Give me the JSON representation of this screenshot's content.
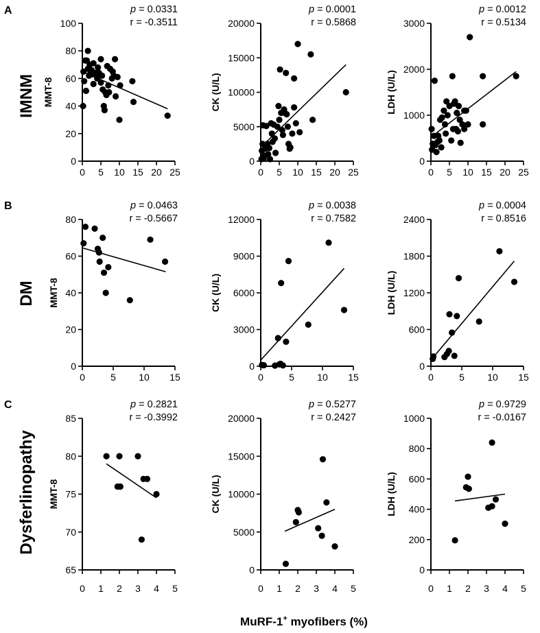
{
  "panel_letters": [
    "A",
    "B",
    "C"
  ],
  "row_labels": [
    "IMNM",
    "DM",
    "Dysferlinopathy"
  ],
  "xlabel": {
    "text": "MuRF-1",
    "sup": "+",
    "suffix": " myofibers (%)"
  },
  "chart_data": [
    {
      "id": "A1",
      "type": "scatter",
      "row": 0,
      "col": 0,
      "ylabel": "MMT-8",
      "xlim": [
        0,
        25
      ],
      "xticks": [
        0,
        5,
        10,
        15,
        20,
        25
      ],
      "ylim": [
        0,
        100
      ],
      "yticks": [
        0,
        20,
        40,
        60,
        80,
        100
      ],
      "p_label": "p",
      "p_value": "= 0.0331",
      "r_text": "r = -0.3511",
      "fit": [
        [
          0,
          65
        ],
        [
          23,
          38
        ]
      ],
      "points": [
        [
          0.2,
          40
        ],
        [
          0.3,
          65
        ],
        [
          0.5,
          58
        ],
        [
          0.8,
          73
        ],
        [
          1,
          51
        ],
        [
          1.2,
          73
        ],
        [
          1.5,
          80
        ],
        [
          1.5,
          67
        ],
        [
          1.8,
          62
        ],
        [
          2,
          70
        ],
        [
          2.2,
          64
        ],
        [
          2.5,
          66
        ],
        [
          2.8,
          63
        ],
        [
          3,
          71
        ],
        [
          3,
          56
        ],
        [
          3.5,
          64
        ],
        [
          4,
          60
        ],
        [
          4.2,
          68
        ],
        [
          4.5,
          64
        ],
        [
          5,
          74
        ],
        [
          5,
          57
        ],
        [
          5.3,
          62
        ],
        [
          5.5,
          52
        ],
        [
          5.8,
          40
        ],
        [
          6,
          37
        ],
        [
          6.2,
          50
        ],
        [
          6.5,
          48
        ],
        [
          6.7,
          69
        ],
        [
          7,
          55
        ],
        [
          7.2,
          50
        ],
        [
          7.5,
          67
        ],
        [
          8,
          60
        ],
        [
          8.2,
          65
        ],
        [
          8.5,
          62
        ],
        [
          8.8,
          74
        ],
        [
          9,
          47
        ],
        [
          9.5,
          61
        ],
        [
          10,
          30
        ],
        [
          10.2,
          55
        ],
        [
          13.5,
          58
        ],
        [
          13.8,
          43
        ],
        [
          23,
          33
        ]
      ]
    },
    {
      "id": "A2",
      "type": "scatter",
      "row": 0,
      "col": 1,
      "ylabel": "CK (U/L)",
      "xlim": [
        0,
        25
      ],
      "xticks": [
        0,
        5,
        10,
        15,
        20,
        25
      ],
      "ylim": [
        0,
        20000
      ],
      "yticks": [
        0,
        5000,
        10000,
        15000,
        20000
      ],
      "p_label": "p",
      "p_value": "= 0.0001",
      "r_text": "r = 0.5868",
      "fit": [
        [
          0,
          2000
        ],
        [
          23,
          14000
        ]
      ],
      "points": [
        [
          0.2,
          300
        ],
        [
          0.3,
          1500
        ],
        [
          0.5,
          2500
        ],
        [
          0.6,
          5200
        ],
        [
          0.8,
          400
        ],
        [
          1,
          800
        ],
        [
          1.2,
          1800
        ],
        [
          1.5,
          5100
        ],
        [
          1.8,
          2500
        ],
        [
          2,
          1000
        ],
        [
          2.3,
          1900
        ],
        [
          2.5,
          300
        ],
        [
          2.8,
          5500
        ],
        [
          3,
          4000
        ],
        [
          3.2,
          2800
        ],
        [
          3.5,
          5300
        ],
        [
          3.8,
          3300
        ],
        [
          4,
          1200
        ],
        [
          4.5,
          5000
        ],
        [
          4.8,
          8000
        ],
        [
          5,
          6000
        ],
        [
          5.2,
          13300
        ],
        [
          5.5,
          7000
        ],
        [
          5.8,
          4500
        ],
        [
          6,
          3800
        ],
        [
          6.3,
          7500
        ],
        [
          6.5,
          7000
        ],
        [
          6.8,
          12800
        ],
        [
          7,
          6800
        ],
        [
          7.3,
          5000
        ],
        [
          7.5,
          2500
        ],
        [
          7.8,
          1800
        ],
        [
          8,
          2000
        ],
        [
          8.5,
          4000
        ],
        [
          9,
          12000
        ],
        [
          9,
          7800
        ],
        [
          9.5,
          5500
        ],
        [
          10,
          17000
        ],
        [
          10.5,
          4200
        ],
        [
          13.5,
          15500
        ],
        [
          14,
          6000
        ],
        [
          23,
          10000
        ]
      ]
    },
    {
      "id": "A3",
      "type": "scatter",
      "row": 0,
      "col": 2,
      "ylabel": "LDH (U/L)",
      "xlim": [
        0,
        25
      ],
      "xticks": [
        0,
        5,
        10,
        15,
        20,
        25
      ],
      "ylim": [
        0,
        3000
      ],
      "yticks": [
        0,
        1000,
        2000,
        3000
      ],
      "p_label": "p",
      "p_value": "= 0.0012",
      "r_text": "r = 0.5134",
      "fit": [
        [
          0,
          520
        ],
        [
          23,
          1950
        ]
      ],
      "points": [
        [
          0.2,
          700
        ],
        [
          0.3,
          250
        ],
        [
          0.5,
          380
        ],
        [
          0.8,
          550
        ],
        [
          1,
          1750
        ],
        [
          1.2,
          350
        ],
        [
          1.5,
          200
        ],
        [
          1.8,
          420
        ],
        [
          2,
          550
        ],
        [
          2.3,
          450
        ],
        [
          2.5,
          900
        ],
        [
          2.8,
          300
        ],
        [
          3,
          950
        ],
        [
          3.5,
          1100
        ],
        [
          3.8,
          800
        ],
        [
          4,
          600
        ],
        [
          4.2,
          1300
        ],
        [
          4.5,
          1000
        ],
        [
          5,
          1200
        ],
        [
          5.5,
          450
        ],
        [
          5.8,
          1850
        ],
        [
          6,
          700
        ],
        [
          6.2,
          1250
        ],
        [
          6.5,
          1300
        ],
        [
          6.8,
          700
        ],
        [
          7,
          1050
        ],
        [
          7.3,
          650
        ],
        [
          7.5,
          1200
        ],
        [
          7.8,
          900
        ],
        [
          8,
          400
        ],
        [
          8.5,
          800
        ],
        [
          9,
          1100
        ],
        [
          9,
          700
        ],
        [
          9.5,
          1100
        ],
        [
          10,
          800
        ],
        [
          10.5,
          2700
        ],
        [
          14,
          1850
        ],
        [
          14,
          800
        ],
        [
          23,
          1850
        ]
      ]
    },
    {
      "id": "B1",
      "type": "scatter",
      "row": 1,
      "col": 0,
      "ylabel": "MMT-8",
      "xlim": [
        0,
        15
      ],
      "xticks": [
        0,
        5,
        10,
        15
      ],
      "ylim": [
        0,
        80
      ],
      "yticks": [
        0,
        20,
        40,
        60,
        80
      ],
      "p_label": "p",
      "p_value": "= 0.0463",
      "r_text": "r = -0.5667",
      "fit": [
        [
          0,
          64.5
        ],
        [
          13.5,
          51.5
        ]
      ],
      "points": [
        [
          0.2,
          67
        ],
        [
          0.5,
          76
        ],
        [
          2,
          75
        ],
        [
          2.5,
          64
        ],
        [
          2.7,
          62
        ],
        [
          2.8,
          57
        ],
        [
          3.3,
          70
        ],
        [
          3.5,
          51
        ],
        [
          3.8,
          40
        ],
        [
          4.2,
          54
        ],
        [
          7.7,
          36
        ],
        [
          11,
          69
        ],
        [
          13.4,
          57
        ]
      ]
    },
    {
      "id": "B2",
      "type": "scatter",
      "row": 1,
      "col": 1,
      "ylabel": "CK (U/L)",
      "xlim": [
        0,
        15
      ],
      "xticks": [
        0,
        5,
        10,
        15
      ],
      "ylim": [
        0,
        12000
      ],
      "yticks": [
        0,
        3000,
        6000,
        9000,
        12000
      ],
      "p_label": "p",
      "p_value": "= 0.0038",
      "r_text": "r = 0.7582",
      "fit": [
        [
          0,
          500
        ],
        [
          13.5,
          8000
        ]
      ],
      "points": [
        [
          0.2,
          100
        ],
        [
          0.5,
          80
        ],
        [
          2.3,
          50
        ],
        [
          2.8,
          2300
        ],
        [
          3,
          150
        ],
        [
          3.2,
          200
        ],
        [
          3.3,
          6800
        ],
        [
          3.6,
          60
        ],
        [
          4.1,
          2000
        ],
        [
          4.5,
          8600
        ],
        [
          7.7,
          3400
        ],
        [
          11,
          10100
        ],
        [
          13.5,
          4600
        ]
      ]
    },
    {
      "id": "B3",
      "type": "scatter",
      "row": 1,
      "col": 2,
      "ylabel": "LDH (U/L)",
      "xlim": [
        0,
        15
      ],
      "xticks": [
        0,
        5,
        10,
        15
      ],
      "ylim": [
        0,
        2400
      ],
      "yticks": [
        0,
        600,
        1200,
        1800,
        2400
      ],
      "p_label": "p",
      "p_value": "= 0.0004",
      "r_text": "r = 0.8516",
      "fit": [
        [
          0,
          100
        ],
        [
          13.5,
          1720
        ]
      ],
      "points": [
        [
          0.3,
          120
        ],
        [
          0.4,
          160
        ],
        [
          2.2,
          150
        ],
        [
          2.6,
          200
        ],
        [
          2.9,
          250
        ],
        [
          3,
          850
        ],
        [
          3.4,
          550
        ],
        [
          3.8,
          170
        ],
        [
          4.2,
          820
        ],
        [
          4.5,
          1440
        ],
        [
          7.8,
          730
        ],
        [
          11.1,
          1880
        ],
        [
          13.5,
          1380
        ]
      ]
    },
    {
      "id": "C1",
      "type": "scatter",
      "row": 2,
      "col": 0,
      "ylabel": "MMT-8",
      "xlim": [
        0,
        5
      ],
      "xticks": [
        0,
        1,
        2,
        3,
        4,
        5
      ],
      "ylim": [
        65,
        85
      ],
      "yticks": [
        65,
        70,
        75,
        80,
        85
      ],
      "p_label": "p",
      "p_value": "= 0.2821",
      "r_text": "r = -0.3992",
      "fit": [
        [
          1.3,
          79
        ],
        [
          4,
          74.5
        ]
      ],
      "points": [
        [
          1.3,
          80
        ],
        [
          1.9,
          76
        ],
        [
          2,
          80
        ],
        [
          2.05,
          76
        ],
        [
          3,
          80
        ],
        [
          3.2,
          69
        ],
        [
          3.3,
          77
        ],
        [
          3.5,
          77
        ],
        [
          4,
          75
        ]
      ]
    },
    {
      "id": "C2",
      "type": "scatter",
      "row": 2,
      "col": 1,
      "ylabel": "CK (U/L)",
      "xlim": [
        0,
        5
      ],
      "xticks": [
        0,
        1,
        2,
        3,
        4,
        5
      ],
      "ylim": [
        0,
        20000
      ],
      "yticks": [
        0,
        5000,
        10000,
        15000,
        20000
      ],
      "p_label": "p",
      "p_value": "= 0.5277",
      "r_text": "r = 0.2427",
      "fit": [
        [
          1.3,
          5100
        ],
        [
          4,
          8000
        ]
      ],
      "points": [
        [
          1.35,
          800
        ],
        [
          1.9,
          6300
        ],
        [
          2,
          7900
        ],
        [
          2.05,
          7600
        ],
        [
          3.1,
          5500
        ],
        [
          3.3,
          4500
        ],
        [
          3.35,
          14600
        ],
        [
          3.55,
          8900
        ],
        [
          4,
          3100
        ]
      ]
    },
    {
      "id": "C3",
      "type": "scatter",
      "row": 2,
      "col": 2,
      "ylabel": "LDH (U/L)",
      "xlim": [
        0,
        5
      ],
      "xticks": [
        0,
        1,
        2,
        3,
        4,
        5
      ],
      "ylim": [
        0,
        1000
      ],
      "yticks": [
        0,
        200,
        400,
        600,
        800,
        1000
      ],
      "p_label": "p",
      "p_value": "= 0.9729",
      "r_text": "r = -0.0167",
      "fit": [
        [
          1.3,
          455
        ],
        [
          4,
          500
        ]
      ],
      "points": [
        [
          1.3,
          195
        ],
        [
          1.9,
          545
        ],
        [
          2,
          615
        ],
        [
          2.05,
          535
        ],
        [
          3.1,
          410
        ],
        [
          3.3,
          840
        ],
        [
          3.3,
          420
        ],
        [
          3.5,
          465
        ],
        [
          4,
          305
        ]
      ]
    }
  ]
}
